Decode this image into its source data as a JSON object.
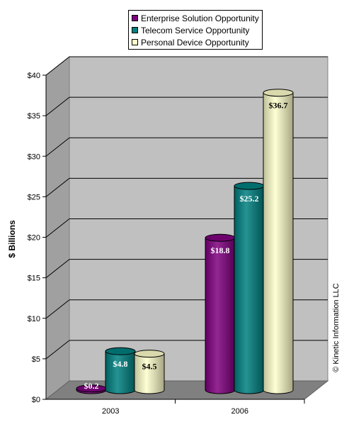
{
  "chart_data": {
    "type": "bar",
    "categories": [
      "2003",
      "2006"
    ],
    "series": [
      {
        "name": "Enterprise Solution Opportunity",
        "values": [
          0.2,
          18.8
        ],
        "labels": [
          "$0.2",
          "$18.8"
        ],
        "color": "#800080",
        "label_color": "#ffffff"
      },
      {
        "name": "Telecom Service Opportunity",
        "values": [
          4.8,
          25.2
        ],
        "labels": [
          "$4.8",
          "$25.2"
        ],
        "color": "#008080",
        "label_color": "#ffffff"
      },
      {
        "name": "Personal Device Opportunity",
        "values": [
          4.5,
          36.7
        ],
        "labels": [
          "$4.5",
          "$36.7"
        ],
        "color": "#ffffcc",
        "label_color": "#000000"
      }
    ],
    "ylabel": "$ Billions",
    "ylim": [
      0,
      40
    ],
    "yticks": [
      0,
      5,
      10,
      15,
      20,
      25,
      30,
      35,
      40
    ],
    "ytick_labels": [
      "$0",
      "$5",
      "$10",
      "$15",
      "$20",
      "$25",
      "$30",
      "$35",
      "$40"
    ],
    "grid": true,
    "legend_position": "top-center",
    "credit": "© Kinetic Information LLC",
    "colors": {
      "wall": "#c0c0c0",
      "side_wall": "#a0a0a0",
      "floor": "#808080"
    }
  }
}
